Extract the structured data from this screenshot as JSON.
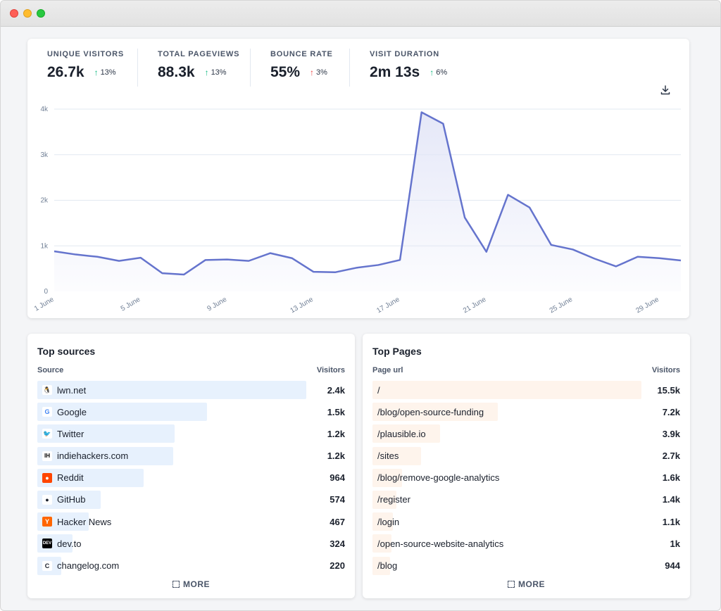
{
  "stats": [
    {
      "label": "UNIQUE VISITORS",
      "value": "26.7k",
      "change": "13%",
      "direction": "up",
      "color": "#10b981"
    },
    {
      "label": "TOTAL PAGEVIEWS",
      "value": "88.3k",
      "change": "13%",
      "direction": "up",
      "color": "#10b981"
    },
    {
      "label": "BOUNCE RATE",
      "value": "55%",
      "change": "3%",
      "direction": "up",
      "color": "#ef4444"
    },
    {
      "label": "VISIT DURATION",
      "value": "2m 13s",
      "change": "6%",
      "direction": "up",
      "color": "#10b981"
    }
  ],
  "download_icon": "download-icon",
  "chart_data": {
    "type": "area",
    "x": [
      "1 June",
      "2 June",
      "3 June",
      "4 June",
      "5 June",
      "6 June",
      "7 June",
      "8 June",
      "9 June",
      "10 June",
      "11 June",
      "12 June",
      "13 June",
      "14 June",
      "15 June",
      "16 June",
      "17 June",
      "18 June",
      "19 June",
      "20 June",
      "21 June",
      "22 June",
      "23 June",
      "24 June",
      "25 June",
      "26 June",
      "27 June",
      "28 June",
      "29 June",
      "30 June"
    ],
    "series": [
      {
        "values": [
          880,
          810,
          760,
          670,
          740,
          400,
          370,
          690,
          700,
          670,
          840,
          730,
          430,
          420,
          520,
          580,
          690,
          3930,
          3680,
          1620,
          870,
          2120,
          1840,
          1020,
          920,
          720,
          550,
          760,
          730,
          680
        ]
      }
    ],
    "x_tick_labels": [
      "1 June",
      "5 June",
      "9 June",
      "13 June",
      "17 June",
      "21 June",
      "25 June",
      "29 June"
    ],
    "y_tick_labels": [
      "0",
      "1k",
      "2k",
      "3k",
      "4k"
    ],
    "ylim": [
      0,
      4000
    ],
    "grid": true,
    "line_color": "#6574cd",
    "fill_color": "#e2e5f7"
  },
  "sources": {
    "title": "Top sources",
    "col_left": "Source",
    "col_right": "Visitors",
    "more": "MORE",
    "rows": [
      {
        "label": "lwn.net",
        "value": "2.4k",
        "fraction": 1.0,
        "icon": "penguin-icon",
        "icon_glyph": "🐧",
        "icon_bg": "#ffffff",
        "icon_color": "#000000"
      },
      {
        "label": "Google",
        "value": "1.5k",
        "fraction": 0.63,
        "icon": "google-icon",
        "icon_glyph": "G",
        "icon_bg": "#ffffff",
        "icon_color": "#4285f4"
      },
      {
        "label": "Twitter",
        "value": "1.2k",
        "fraction": 0.51,
        "icon": "twitter-icon",
        "icon_glyph": "🐦",
        "icon_bg": "#ffffff",
        "icon_color": "#1da1f2"
      },
      {
        "label": "indiehackers.com",
        "value": "1.2k",
        "fraction": 0.505,
        "icon": "indiehackers-icon",
        "icon_glyph": "IH",
        "icon_bg": "#ffffff",
        "icon_color": "#000000"
      },
      {
        "label": "Reddit",
        "value": "964",
        "fraction": 0.395,
        "icon": "reddit-icon",
        "icon_glyph": "●",
        "icon_bg": "#ff4500",
        "icon_color": "#ffffff"
      },
      {
        "label": "GitHub",
        "value": "574",
        "fraction": 0.235,
        "icon": "github-icon",
        "icon_glyph": "●",
        "icon_bg": "#ffffff",
        "icon_color": "#1a202c"
      },
      {
        "label": "Hacker News",
        "value": "467",
        "fraction": 0.19,
        "icon": "hacker-news-icon",
        "icon_glyph": "Y",
        "icon_bg": "#ff6600",
        "icon_color": "#ffffff"
      },
      {
        "label": "dev.to",
        "value": "324",
        "fraction": 0.13,
        "icon": "devto-icon",
        "icon_glyph": "DEV",
        "icon_bg": "#000000",
        "icon_color": "#ffffff"
      },
      {
        "label": "changelog.com",
        "value": "220",
        "fraction": 0.09,
        "icon": "changelog-icon",
        "icon_glyph": "C",
        "icon_bg": "#ffffff",
        "icon_color": "#1a202c"
      }
    ]
  },
  "pages": {
    "title": "Top Pages",
    "col_left": "Page url",
    "col_right": "Visitors",
    "more": "MORE",
    "rows": [
      {
        "label": "/",
        "value": "15.5k",
        "fraction": 1.0
      },
      {
        "label": "/blog/open-source-funding",
        "value": "7.2k",
        "fraction": 0.465
      },
      {
        "label": "/plausible.io",
        "value": "3.9k",
        "fraction": 0.25
      },
      {
        "label": "/sites",
        "value": "2.7k",
        "fraction": 0.18
      },
      {
        "label": "/blog/remove-google-analytics",
        "value": "1.6k",
        "fraction": 0.11
      },
      {
        "label": "/register",
        "value": "1.4k",
        "fraction": 0.09
      },
      {
        "label": "/login",
        "value": "1.1k",
        "fraction": 0.075
      },
      {
        "label": "/open-source-website-analytics",
        "value": "1k",
        "fraction": 0.07
      },
      {
        "label": "/blog",
        "value": "944",
        "fraction": 0.065
      }
    ]
  }
}
